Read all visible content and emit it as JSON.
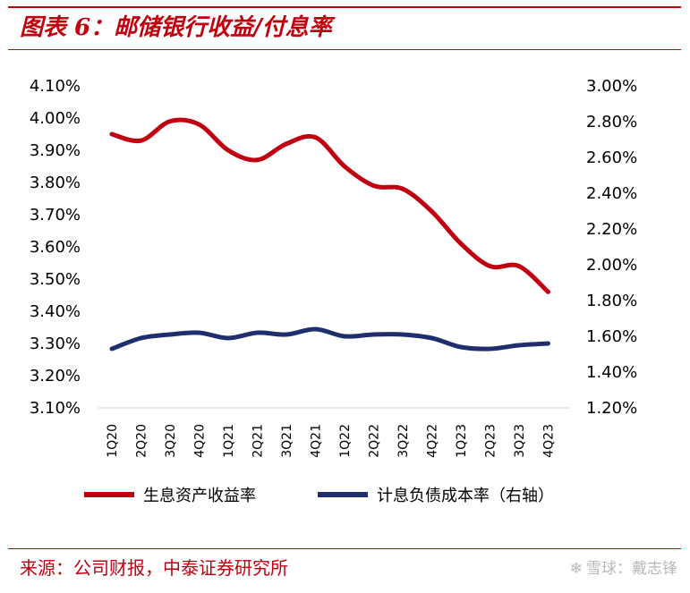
{
  "header": {
    "title": "图表 6：邮储银行收益/付息率",
    "accent_color": "#c0000f"
  },
  "footer": {
    "source": "来源：公司财报，中泰证券研究所",
    "watermark": "雪球：戴志锋",
    "watermark_icon": "snowball-logo-icon"
  },
  "chart_data": {
    "type": "line",
    "title": "",
    "categories": [
      "1Q20",
      "2Q20",
      "3Q20",
      "4Q20",
      "1Q21",
      "2Q21",
      "3Q21",
      "4Q21",
      "1Q22",
      "2Q22",
      "3Q22",
      "4Q22",
      "1Q23",
      "2Q23",
      "3Q23",
      "4Q23"
    ],
    "y_left": {
      "ylim": [
        3.1,
        4.1
      ],
      "ticks": [
        "3.10%",
        "3.20%",
        "3.30%",
        "3.40%",
        "3.50%",
        "3.60%",
        "3.70%",
        "3.80%",
        "3.90%",
        "4.00%",
        "4.10%"
      ]
    },
    "y_right": {
      "ylim": [
        1.2,
        3.0
      ],
      "ticks": [
        "1.20%",
        "1.40%",
        "1.60%",
        "1.80%",
        "2.00%",
        "2.20%",
        "2.40%",
        "2.60%",
        "2.80%",
        "3.00%"
      ]
    },
    "series": [
      {
        "name": "生息资产收益率",
        "axis": "left",
        "color": "#c00010",
        "values": [
          3.95,
          3.93,
          3.99,
          3.98,
          3.9,
          3.87,
          3.92,
          3.94,
          3.85,
          3.79,
          3.78,
          3.71,
          3.61,
          3.54,
          3.54,
          3.46
        ]
      },
      {
        "name": "计息负债成本率（右轴）",
        "axis": "right",
        "color": "#1f2f6e",
        "values": [
          1.53,
          1.59,
          1.61,
          1.62,
          1.59,
          1.62,
          1.61,
          1.64,
          1.6,
          1.61,
          1.61,
          1.59,
          1.54,
          1.53,
          1.55,
          1.56
        ]
      }
    ],
    "legend_position": "bottom",
    "grid": false
  }
}
